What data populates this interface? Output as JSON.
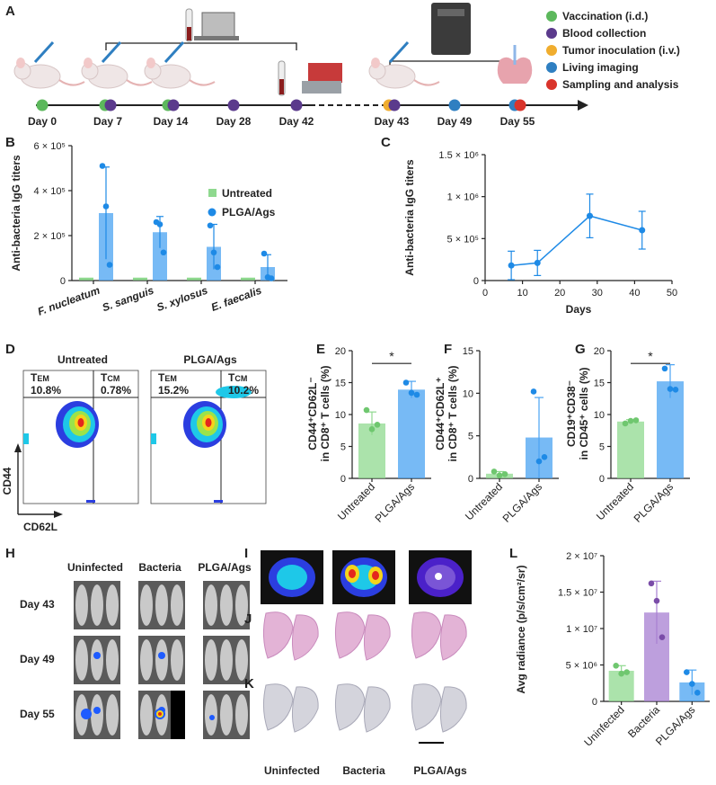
{
  "panels": {
    "A": "A",
    "B": "B",
    "C": "C",
    "D": "D",
    "E": "E",
    "F": "F",
    "G": "G",
    "H": "H",
    "I": "I",
    "J": "J",
    "K": "K",
    "L": "L"
  },
  "timeline": {
    "days": [
      "Day 0",
      "Day 7",
      "Day 14",
      "Day 28",
      "Day 42",
      "Day 43",
      "Day 49",
      "Day 55"
    ],
    "legend": [
      {
        "label": "Vaccination (i.d.)",
        "color": "#5cb85c"
      },
      {
        "label": "Blood collection",
        "color": "#5b3a8c"
      },
      {
        "label": "Tumor inoculation (i.v.)",
        "color": "#f0ad2e"
      },
      {
        "label": "Living imaging",
        "color": "#2f7fc1"
      },
      {
        "label": "Sampling and analysis",
        "color": "#d9342b"
      }
    ]
  },
  "colors": {
    "untreated": "#8fd98f",
    "plga": "#4aa3f2",
    "plga_dot": "#1e8ae6",
    "bacteria": "#a77fd1"
  },
  "chart_data": [
    {
      "id": "B",
      "type": "bar",
      "ylabel": "Anti-bacteria IgG titers",
      "yticks": [
        "0",
        "2 × 10⁵",
        "4 × 10⁵",
        "6 × 10⁵"
      ],
      "ylim": [
        0,
        600000
      ],
      "categories": [
        "F. nucleatum",
        "S. sanguis",
        "S. xylosus",
        "E. faecalis"
      ],
      "series": [
        {
          "name": "Untreated",
          "values": [
            5000,
            5000,
            5000,
            5000
          ]
        },
        {
          "name": "PLGA/Ags",
          "values": [
            300000,
            215000,
            150000,
            60000
          ],
          "errors": [
            205000,
            70000,
            100000,
            55000
          ],
          "points": [
            [
              510000,
              330000,
              70000
            ],
            [
              260000,
              250000,
              125000
            ],
            [
              245000,
              125000,
              60000
            ],
            [
              120000,
              15000,
              10000
            ]
          ]
        }
      ],
      "legend": "top-right"
    },
    {
      "id": "C",
      "type": "line",
      "xlabel": "Days",
      "ylabel": "Anti-bacteria IgG titers",
      "xticks": [
        "0",
        "10",
        "20",
        "30",
        "40",
        "50"
      ],
      "yticks": [
        "0",
        "5 × 10⁵",
        "1 × 10⁶",
        "1.5 × 10⁶"
      ],
      "xlim": [
        0,
        50
      ],
      "ylim": [
        0,
        1500000
      ],
      "x": [
        7,
        14,
        28,
        42
      ],
      "y": [
        180000,
        210000,
        770000,
        600000
      ],
      "errors": [
        170000,
        150000,
        260000,
        225000
      ]
    },
    {
      "id": "E",
      "type": "bar",
      "ylabel_main": "CD44⁺CD62L⁻",
      "ylabel_sub": "in CD8⁺ T cells (%)",
      "yticks": [
        "0",
        "5",
        "10",
        "15",
        "20"
      ],
      "ylim": [
        0,
        20
      ],
      "categories": [
        "Untreated",
        "PLGA/Ags"
      ],
      "values": [
        8.6,
        13.9
      ],
      "errors": [
        1.8,
        1.3
      ],
      "points": [
        [
          10.7,
          7.7,
          8.4
        ],
        [
          15.0,
          13.4,
          13.1
        ]
      ],
      "significance": "*"
    },
    {
      "id": "F",
      "type": "bar",
      "ylabel_main": "CD44⁺CD62L⁺",
      "ylabel_sub": "in CD8⁺ T cells (%)",
      "yticks": [
        "0",
        "5",
        "10",
        "15"
      ],
      "ylim": [
        0,
        15
      ],
      "categories": [
        "Untreated",
        "PLGA/Ags"
      ],
      "values": [
        0.55,
        4.8
      ],
      "errors": [
        0.25,
        4.7
      ],
      "points": [
        [
          0.8,
          0.35,
          0.5
        ],
        [
          10.2,
          2.0,
          2.5
        ]
      ]
    },
    {
      "id": "G",
      "type": "bar",
      "ylabel_main": "CD19⁺CD38⁻",
      "ylabel_sub": "in CD45⁺ cells (%)",
      "yticks": [
        "0",
        "5",
        "10",
        "15",
        "20"
      ],
      "ylim": [
        0,
        20
      ],
      "categories": [
        "Untreated",
        "PLGA/Ags"
      ],
      "values": [
        8.9,
        15.2
      ],
      "errors": [
        0.3,
        2.6
      ],
      "points": [
        [
          8.6,
          9.0,
          9.1
        ],
        [
          17.2,
          14.0,
          13.9
        ]
      ],
      "significance": "*"
    },
    {
      "id": "L",
      "type": "bar",
      "ylabel": "Avg radiance (p/s/cm²/sr)",
      "yticks": [
        "0",
        "5 × 10⁶",
        "1 × 10⁷",
        "1.5 × 10⁷",
        "2 × 10⁷"
      ],
      "ylim": [
        0,
        20000000
      ],
      "categories": [
        "Uninfected",
        "Bacteria",
        "PLGA/Ags"
      ],
      "values": [
        4200000,
        12200000,
        2600000
      ],
      "errors": [
        700000,
        4300000,
        1700000
      ],
      "points": [
        [
          4900000,
          3800000,
          4000000
        ],
        [
          16200000,
          13800000,
          8800000
        ],
        [
          4000000,
          2400000,
          1200000
        ]
      ]
    }
  ],
  "flow": {
    "groups": [
      "Untreated",
      "PLGA/Ags"
    ],
    "quadrants": [
      {
        "tem": "T",
        "tem_sub": "EM",
        "tem_val": "10.8%",
        "tcm": "T",
        "tcm_sub": "CM",
        "tcm_val": "0.78%"
      },
      {
        "tem": "T",
        "tem_sub": "EM",
        "tem_val": "15.2%",
        "tcm": "T",
        "tcm_sub": "CM",
        "tcm_val": "10.2%"
      }
    ],
    "yaxis": "CD44",
    "xaxis": "CD62L"
  },
  "imaging": {
    "groups": [
      "Uninfected",
      "Bacteria",
      "PLGA/Ags"
    ],
    "days": [
      "Day 43",
      "Day 49",
      "Day 55"
    ]
  },
  "histology": {
    "groups": [
      "Uninfected",
      "Bacteria",
      "PLGA/Ags"
    ]
  }
}
